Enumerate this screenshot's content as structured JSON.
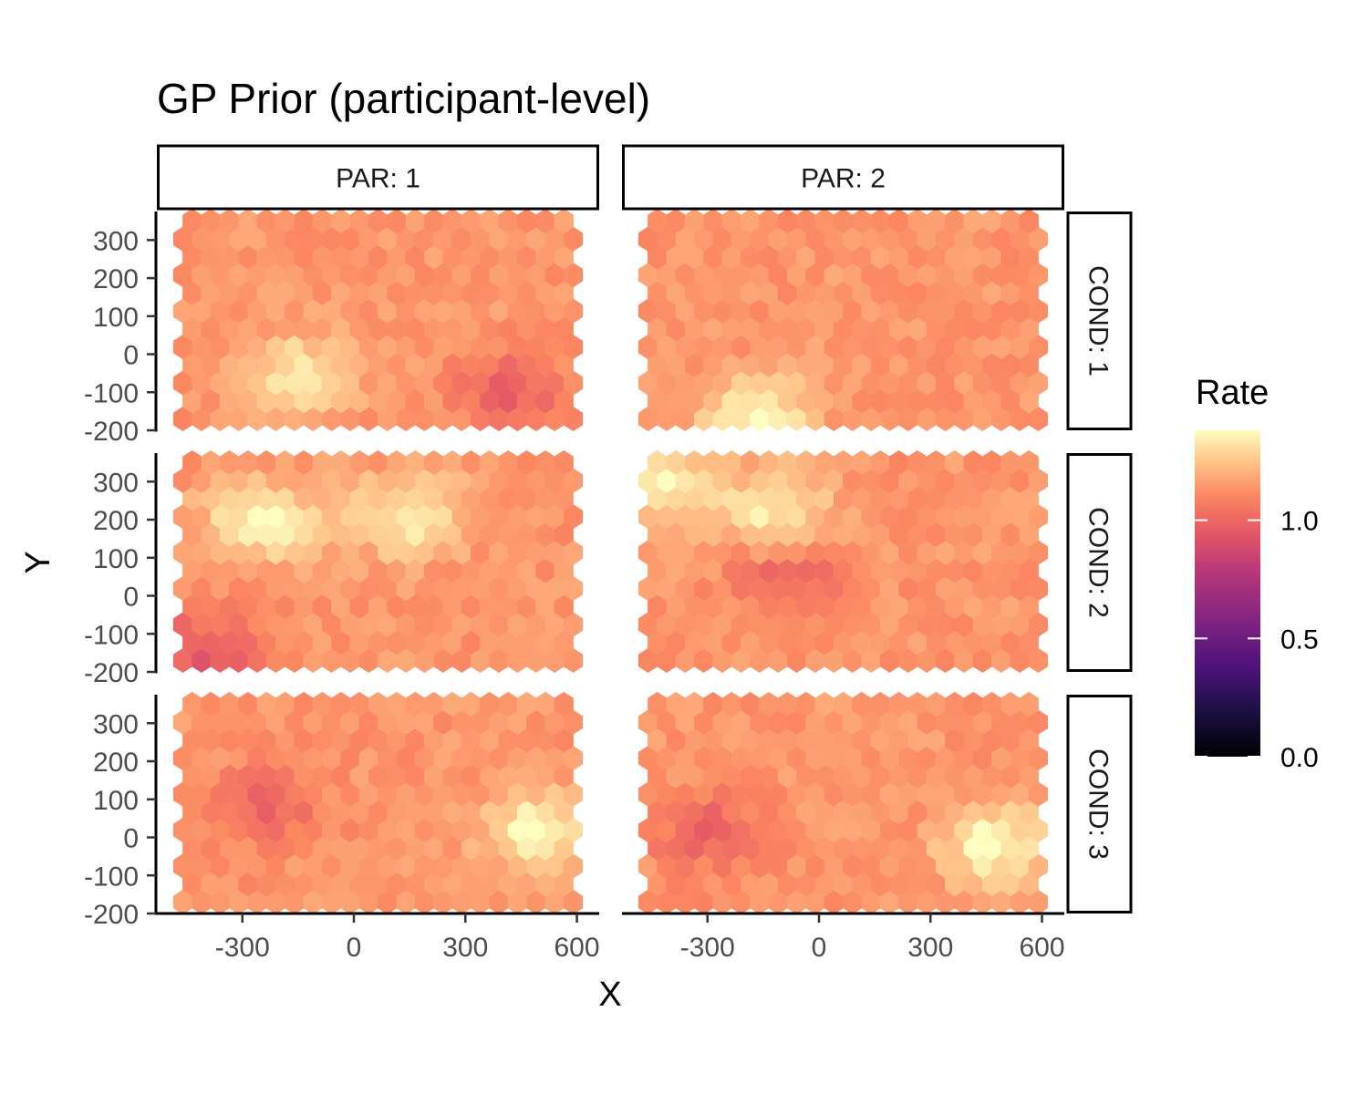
{
  "chart_data": {
    "type": "heatmap",
    "subtype": "hexbin-facet-grid",
    "title": "GP Prior (participant-level)",
    "xlabel": "X",
    "ylabel": "Y",
    "facet_columns": [
      "PAR: 1",
      "PAR: 2"
    ],
    "facet_rows": [
      "COND: 1",
      "COND: 2",
      "COND: 3"
    ],
    "x_ticks": [
      "-300",
      "0",
      "300",
      "600"
    ],
    "x_tick_values": [
      -300,
      0,
      300,
      600
    ],
    "y_ticks": [
      "-200",
      "-100",
      "0",
      "100",
      "200",
      "300"
    ],
    "y_tick_values": [
      -200,
      -100,
      0,
      100,
      200,
      300
    ],
    "xlim": [
      -530,
      660
    ],
    "ylim": [
      -200,
      375
    ],
    "hex_grid": {
      "x_range": [
        -460,
        590
      ],
      "y_range": [
        -170,
        350
      ],
      "columns": 22,
      "rows": 12
    },
    "value_range_note": "Most cells lie between about 0.95 and 1.3",
    "hotspots": [
      {
        "panel": "PAR: 1 / COND: 1",
        "x": -150,
        "y": -50,
        "value": 1.33
      },
      {
        "panel": "PAR: 1 / COND: 1",
        "x": 430,
        "y": -100,
        "value": 0.98
      },
      {
        "panel": "PAR: 2 / COND: 1",
        "x": -170,
        "y": -160,
        "value": 1.38
      },
      {
        "panel": "PAR: 1 / COND: 2",
        "x": -250,
        "y": 200,
        "value": 1.38
      },
      {
        "panel": "PAR: 1 / COND: 2",
        "x": 140,
        "y": 210,
        "value": 1.35
      },
      {
        "panel": "PAR: 1 / COND: 2",
        "x": -400,
        "y": -150,
        "value": 0.95
      },
      {
        "panel": "PAR: 2 / COND: 2",
        "x": -120,
        "y": 230,
        "value": 1.35
      },
      {
        "panel": "PAR: 2 / COND: 2",
        "x": -450,
        "y": 290,
        "value": 1.36
      },
      {
        "panel": "PAR: 2 / COND: 2",
        "x": -80,
        "y": 50,
        "value": 1.0
      },
      {
        "panel": "PAR: 1 / COND: 3",
        "x": 500,
        "y": 20,
        "value": 1.38
      },
      {
        "panel": "PAR: 1 / COND: 3",
        "x": -250,
        "y": 80,
        "value": 1.0
      },
      {
        "panel": "PAR: 2 / COND: 3",
        "x": 480,
        "y": -20,
        "value": 1.38
      },
      {
        "panel": "PAR: 2 / COND: 3",
        "x": -300,
        "y": 20,
        "value": 1.0
      }
    ],
    "legend": {
      "title": "Rate",
      "position": "right",
      "palette": "magma",
      "range": [
        0,
        1.38
      ],
      "tick_values": [
        0,
        0.5,
        1.0
      ],
      "tick_labels": [
        "0.0",
        "0.5",
        "1.0"
      ]
    },
    "grid": false
  }
}
